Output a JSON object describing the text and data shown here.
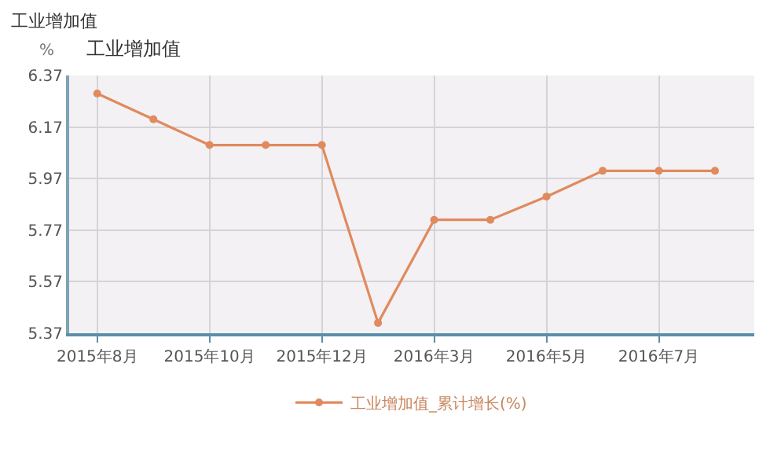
{
  "chart_data": {
    "type": "line",
    "title": "工业增加值",
    "subtitle": "工业增加值",
    "ylabel": "%",
    "categories": [
      "2015年8月",
      null,
      "2015年10月",
      null,
      "2015年12月",
      null,
      "2016年3月",
      null,
      "2016年5月",
      null,
      "2016年7月",
      null
    ],
    "series": [
      {
        "name": "工业增加值_累计增长(%)",
        "color": "#e08a5e",
        "values": [
          6.3,
          6.2,
          6.1,
          6.1,
          6.1,
          5.41,
          5.81,
          5.81,
          5.9,
          6.0,
          6.0,
          6.0
        ]
      }
    ],
    "ylim": [
      5.37,
      6.37
    ],
    "yticks": [
      6.37,
      6.17,
      5.97,
      5.77,
      5.57,
      5.37
    ],
    "grid": true,
    "legend": "bottom",
    "marker": "circle",
    "line_style": "solid"
  }
}
